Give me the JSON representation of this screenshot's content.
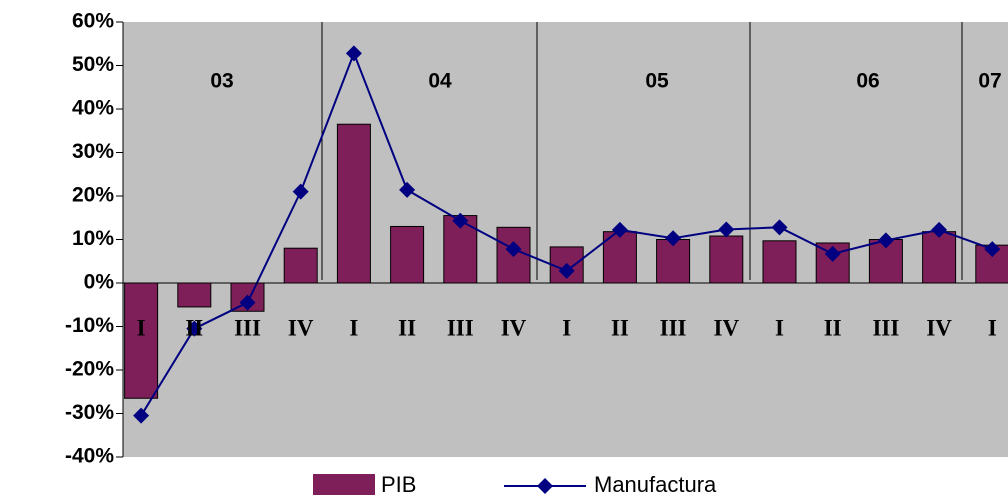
{
  "chart_data": {
    "type": "bar_line",
    "categories": [
      "I",
      "II",
      "III",
      "IV",
      "I",
      "II",
      "III",
      "IV",
      "I",
      "II",
      "III",
      "IV",
      "I",
      "II",
      "III",
      "IV",
      "I"
    ],
    "year_labels": [
      "03",
      "04",
      "05",
      "06",
      "07"
    ],
    "series": [
      {
        "name": "PIB",
        "type": "bar",
        "color": "#7f1f5a",
        "values": [
          -26.5,
          -5.5,
          -6.5,
          8,
          36.5,
          13,
          15.5,
          12.8,
          8.3,
          11.8,
          10,
          10.8,
          9.7,
          9.2,
          10,
          11.8,
          8.7
        ]
      },
      {
        "name": "Manufactura",
        "type": "line",
        "color": "#000080",
        "values": [
          -30.5,
          -10.5,
          -4.5,
          21,
          52.8,
          21.4,
          14.3,
          7.8,
          2.8,
          12.2,
          10.3,
          12.3,
          12.8,
          6.7,
          9.8,
          12.2,
          7.8
        ]
      }
    ],
    "ylim": [
      -40,
      60
    ],
    "yticks": [
      {
        "value": -40,
        "label": "-40%"
      },
      {
        "value": -30,
        "label": "-30%"
      },
      {
        "value": -20,
        "label": "-20%"
      },
      {
        "value": -10,
        "label": "-10%"
      },
      {
        "value": 0,
        "label": "0%"
      },
      {
        "value": 10,
        "label": "10%"
      },
      {
        "value": 20,
        "label": "20%"
      },
      {
        "value": 30,
        "label": "30%"
      },
      {
        "value": 40,
        "label": "40%"
      },
      {
        "value": 50,
        "label": "50%"
      },
      {
        "value": 60,
        "label": "60%"
      }
    ],
    "legend": "bottom"
  }
}
